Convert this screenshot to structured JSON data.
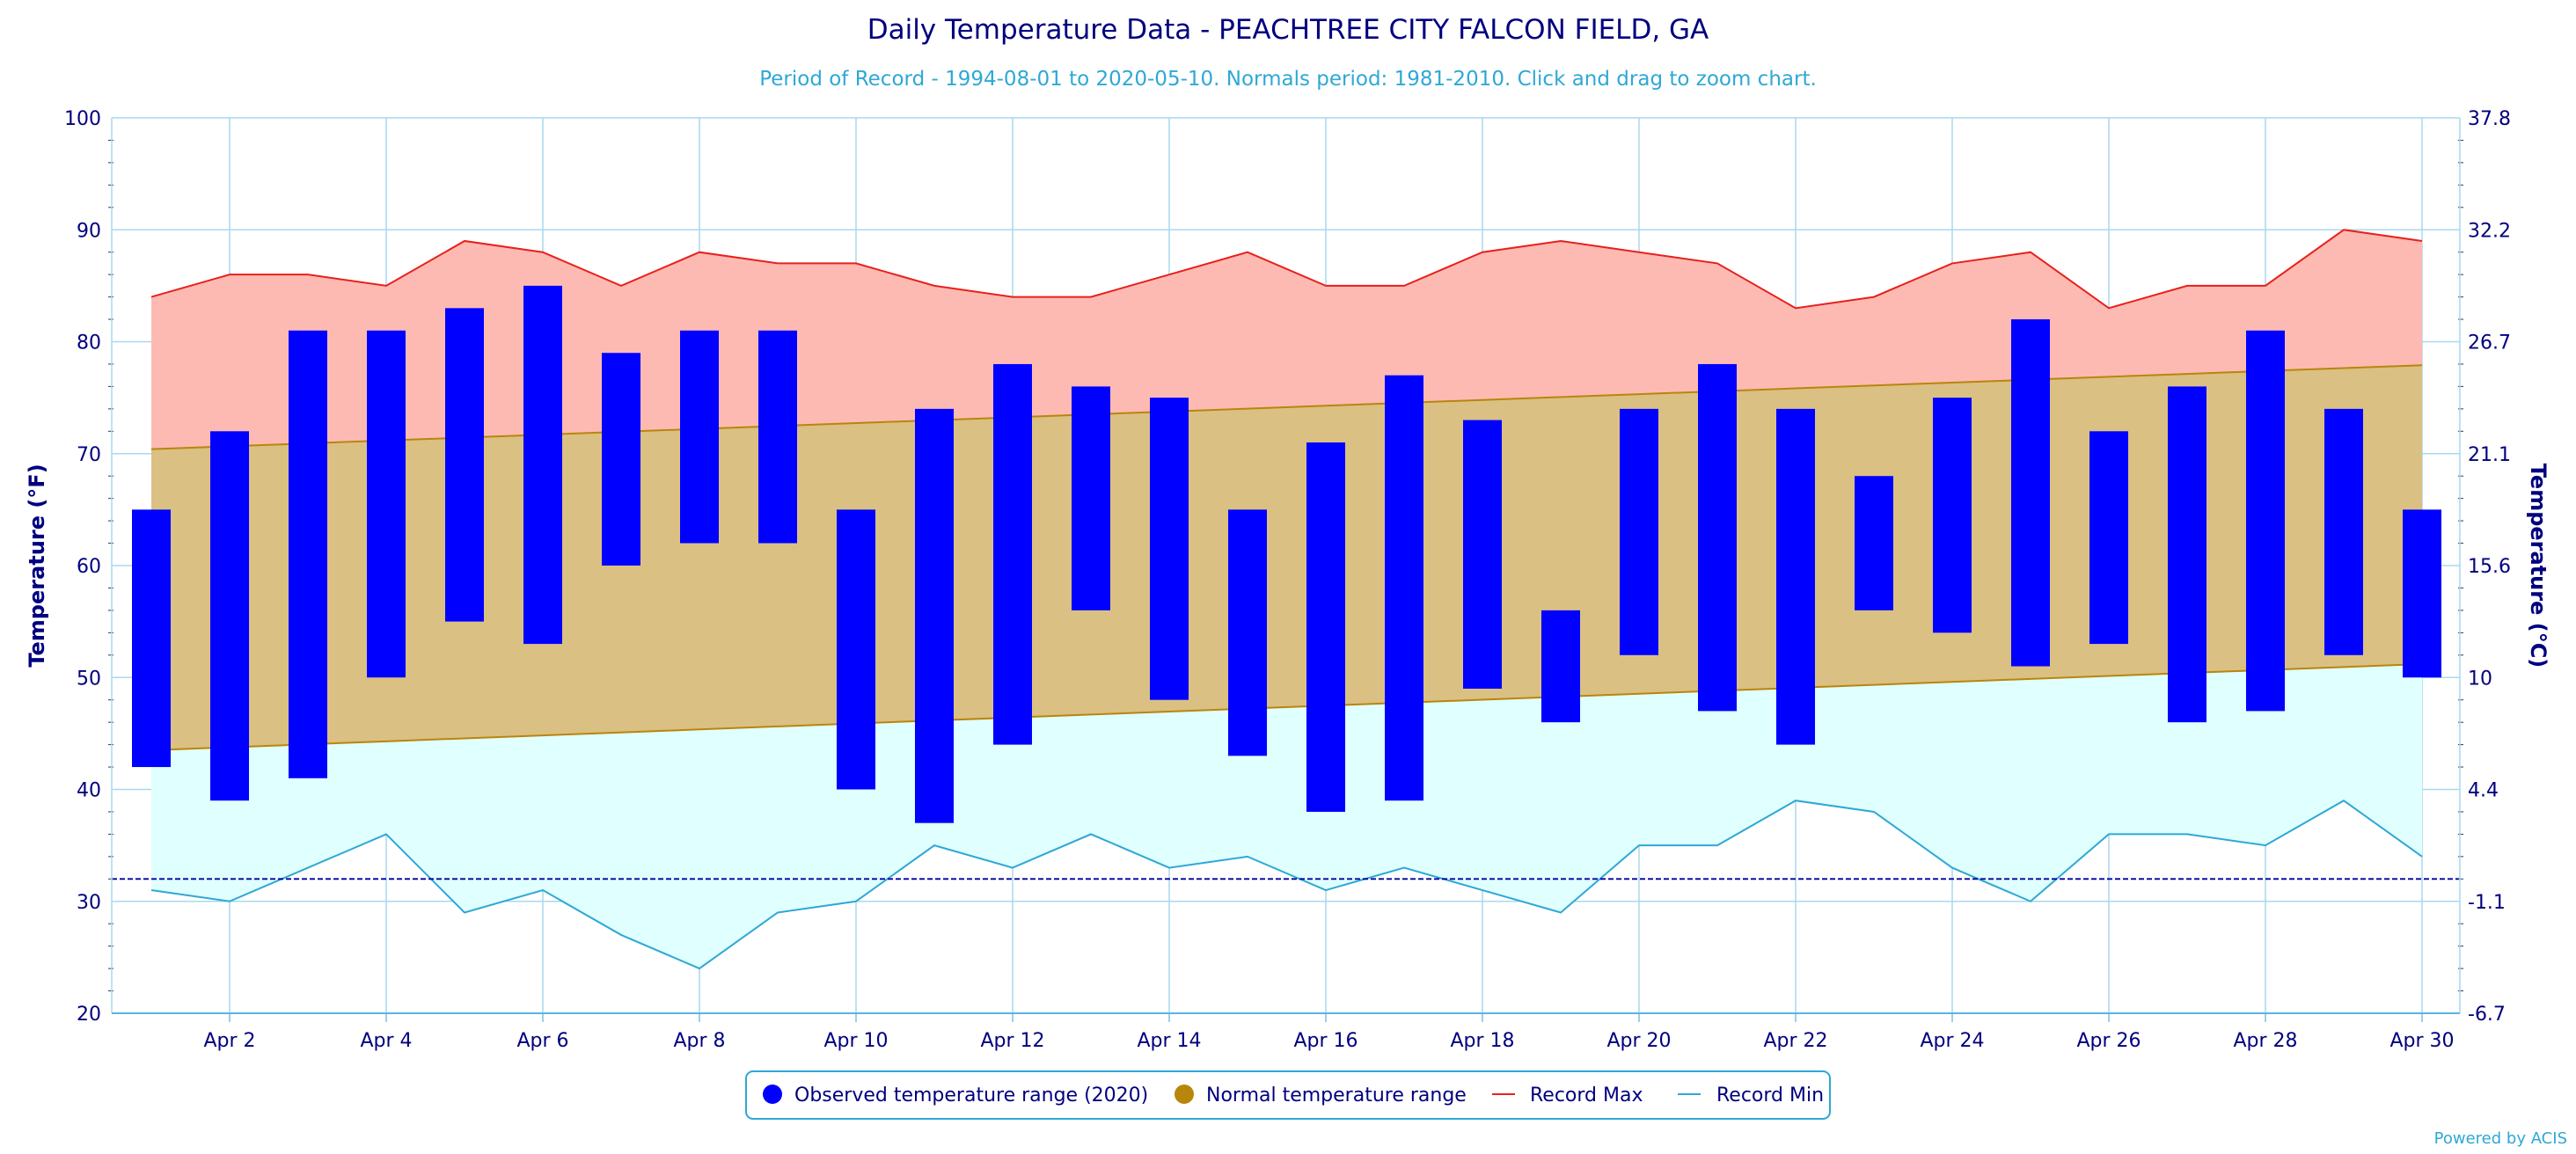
{
  "chart_data": {
    "type": "bar",
    "title": "Daily Temperature Data - PEACHTREE CITY FALCON FIELD, GA",
    "subtitle": "Period of Record - 1994-08-01 to 2020-05-10. Normals period: 1981-2010. Click and drag to zoom chart.",
    "credit": "Powered by ACIS",
    "ylabel_left": "Temperature (°F)",
    "ylabel_right": "Temperature (°C)",
    "ylim": [
      20,
      100
    ],
    "y_ticks_left": [
      "100",
      "90",
      "80",
      "70",
      "60",
      "50",
      "40",
      "30",
      "20"
    ],
    "y_ticks_right": [
      "37.8",
      "32.2",
      "26.7",
      "21.1",
      "15.6",
      "10",
      "4.4",
      "-1.1",
      "-6.7"
    ],
    "y_tick_values": [
      100,
      90,
      80,
      70,
      60,
      50,
      40,
      30,
      20
    ],
    "x_tick_labels": [
      "Apr 2",
      "Apr 4",
      "Apr 6",
      "Apr 8",
      "Apr 10",
      "Apr 12",
      "Apr 14",
      "Apr 16",
      "Apr 18",
      "Apr 20",
      "Apr 22",
      "Apr 24",
      "Apr 26",
      "Apr 28",
      "Apr 30"
    ],
    "x_tick_days": [
      2,
      4,
      6,
      8,
      10,
      12,
      14,
      16,
      18,
      20,
      22,
      24,
      26,
      28,
      30
    ],
    "days": [
      1,
      2,
      3,
      4,
      5,
      6,
      7,
      8,
      9,
      10,
      11,
      12,
      13,
      14,
      15,
      16,
      17,
      18,
      19,
      20,
      21,
      22,
      23,
      24,
      25,
      26,
      27,
      28,
      29,
      30
    ],
    "freeze_line": 32,
    "legend_position": "bottom-center",
    "series": [
      {
        "name": "Observed temperature range (2020)",
        "color": "#0000ff",
        "low": [
          42,
          39,
          41,
          50,
          55,
          53,
          60,
          62,
          62,
          40,
          37,
          44,
          56,
          48,
          43,
          38,
          39,
          49,
          46,
          52,
          47,
          44,
          56,
          54,
          51,
          53,
          46,
          47,
          52,
          50
        ],
        "high": [
          65,
          72,
          81,
          81,
          83,
          85,
          79,
          81,
          81,
          65,
          74,
          78,
          76,
          75,
          65,
          71,
          77,
          73,
          56,
          74,
          78,
          74,
          68,
          75,
          82,
          72,
          76,
          81,
          74,
          65
        ]
      },
      {
        "name": "Normal temperature range",
        "color": "#b8860b",
        "fill": "#dbc083",
        "low_start": 43.5,
        "low_end": 51.2,
        "high_start": 70.4,
        "high_end": 77.9
      },
      {
        "name": "Record Max",
        "color": "#e8201c",
        "fill": "#fdbab3",
        "values": [
          84,
          86,
          86,
          85,
          89,
          88,
          85,
          88,
          87,
          87,
          85,
          84,
          84,
          86,
          88,
          85,
          85,
          88,
          89,
          88,
          87,
          83,
          84,
          87,
          88,
          83,
          85,
          85,
          90,
          89
        ]
      },
      {
        "name": "Record Min",
        "color": "#2ea8d6",
        "fill": "#e0ffff",
        "values": [
          31,
          30,
          33,
          36,
          29,
          31,
          27,
          24,
          29,
          30,
          35,
          33,
          36,
          33,
          34,
          31,
          33,
          31,
          29,
          35,
          35,
          39,
          38,
          33,
          30,
          36,
          36,
          35,
          39,
          34
        ]
      }
    ]
  }
}
